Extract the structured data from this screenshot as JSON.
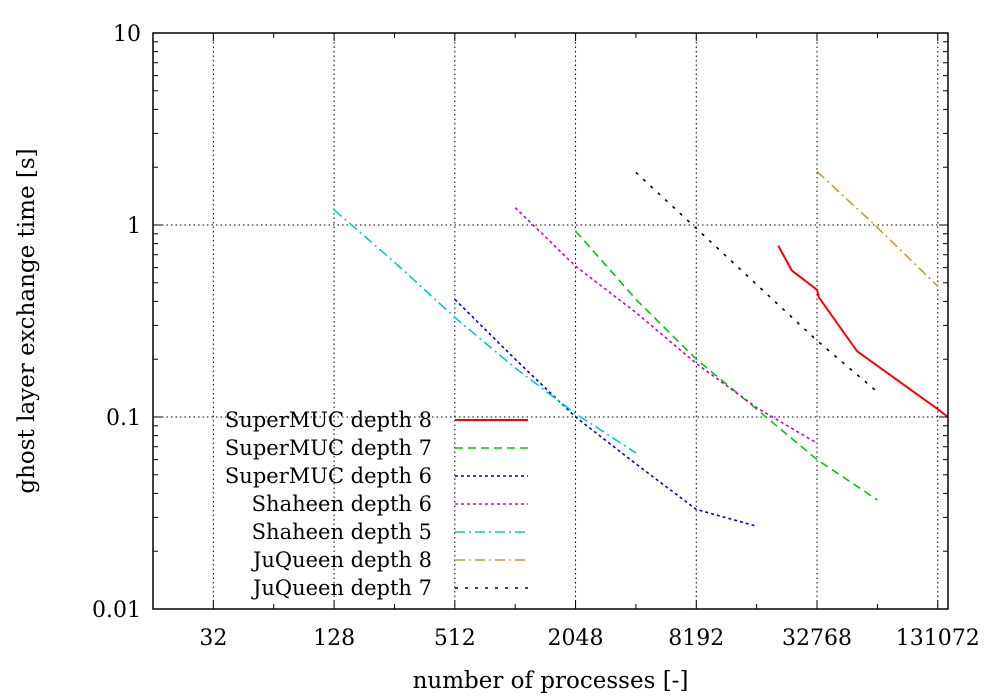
{
  "chart_data": {
    "type": "line",
    "title": "",
    "xlabel": "number of processes [-]",
    "ylabel": "ghost layer exchange time [s]",
    "xscale": "log2",
    "yscale": "log10",
    "xlim": [
      16,
      147456
    ],
    "ylim": [
      0.01,
      10
    ],
    "xticks": [
      32,
      128,
      512,
      2048,
      8192,
      32768,
      131072
    ],
    "xtick_labels": [
      "32",
      "128",
      "512",
      "2048",
      "8192",
      "32768",
      "131072"
    ],
    "yticks": [
      0.01,
      0.1,
      1,
      10
    ],
    "ytick_labels": [
      "0.01",
      "0.1",
      "1",
      "10"
    ],
    "grid": true,
    "legend_position": "bottom-left",
    "series": [
      {
        "name": "SuperMUC depth 8",
        "color": "#ff0000",
        "dash": "solid",
        "points": [
          [
            21000,
            0.78
          ],
          [
            24500,
            0.58
          ],
          [
            32768,
            0.46
          ],
          [
            33500,
            0.42
          ],
          [
            43000,
            0.29
          ],
          [
            52000,
            0.22
          ],
          [
            131072,
            0.11
          ],
          [
            147456,
            0.1
          ]
        ]
      },
      {
        "name": "SuperMUC depth 7",
        "color": "#00cc00",
        "dash": "dashed",
        "points": [
          [
            2048,
            0.93
          ],
          [
            4096,
            0.41
          ],
          [
            8192,
            0.2
          ],
          [
            16384,
            0.11
          ],
          [
            32768,
            0.06
          ],
          [
            65536,
            0.037
          ]
        ]
      },
      {
        "name": "SuperMUC depth 6",
        "color": "#0000cc",
        "dash": "dotted",
        "points": [
          [
            512,
            0.41
          ],
          [
            1024,
            0.2
          ],
          [
            2048,
            0.1
          ],
          [
            4096,
            0.057
          ],
          [
            8192,
            0.033
          ],
          [
            16384,
            0.027
          ]
        ]
      },
      {
        "name": "Shaheen depth 6",
        "color": "#cc00cc",
        "dash": "dotted",
        "points": [
          [
            1024,
            1.23
          ],
          [
            2048,
            0.61
          ],
          [
            4096,
            0.35
          ],
          [
            8192,
            0.19
          ],
          [
            16384,
            0.112
          ],
          [
            32768,
            0.073
          ]
        ]
      },
      {
        "name": "Shaheen depth 5",
        "color": "#00cccc",
        "dash": "dash-dot",
        "points": [
          [
            128,
            1.2
          ],
          [
            256,
            0.64
          ],
          [
            512,
            0.33
          ],
          [
            1024,
            0.18
          ],
          [
            2048,
            0.104
          ],
          [
            4096,
            0.065
          ]
        ]
      },
      {
        "name": "JuQueen depth 8",
        "color": "#cc9933",
        "dash": "dash-dot",
        "points": [
          [
            32768,
            1.9
          ],
          [
            65536,
            0.97
          ],
          [
            131072,
            0.48
          ]
        ]
      },
      {
        "name": "JuQueen depth 7",
        "color": "#000000",
        "dash": "loose-dotted",
        "points": [
          [
            4096,
            1.88
          ],
          [
            8192,
            0.96
          ],
          [
            16384,
            0.49
          ],
          [
            32768,
            0.25
          ],
          [
            65536,
            0.135
          ]
        ]
      }
    ]
  }
}
